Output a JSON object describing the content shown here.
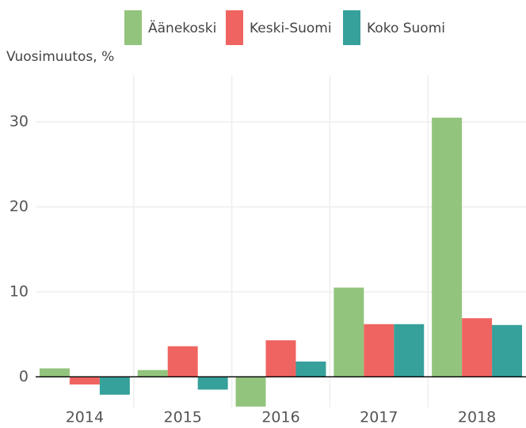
{
  "chart_data": {
    "type": "bar",
    "y_label": "Vuosimuutos, %",
    "categories": [
      "2014",
      "2015",
      "2016",
      "2017",
      "2018"
    ],
    "series": [
      {
        "name": "Äänekoski",
        "color": "#93c47d",
        "values": [
          1.0,
          0.8,
          -3.5,
          10.5,
          30.5
        ]
      },
      {
        "name": "Keski-Suomi",
        "color": "#ef6461",
        "values": [
          -0.9,
          3.6,
          4.3,
          6.2,
          6.9
        ]
      },
      {
        "name": "Koko Suomi",
        "color": "#36a09a",
        "values": [
          -2.1,
          -1.5,
          1.8,
          6.2,
          6.1
        ]
      }
    ],
    "ylim": [
      -3.6,
      35.5
    ],
    "yticks": [
      0,
      10,
      20,
      30
    ],
    "grid": true,
    "legend": "top"
  }
}
